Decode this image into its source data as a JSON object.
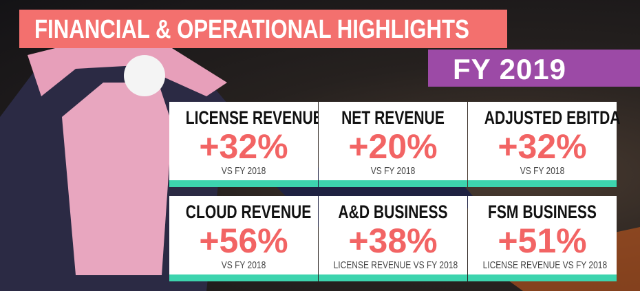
{
  "header": {
    "title": "FINANCIAL & OPERATIONAL HIGHLIGHTS",
    "subtitle": "FY 2019"
  },
  "cards": [
    {
      "title": "LICENSE REVENUE",
      "value": "+32%",
      "note": "VS FY 2018"
    },
    {
      "title": "NET REVENUE",
      "value": "+20%",
      "note": "VS FY 2018"
    },
    {
      "title": "ADJUSTED EBITDA",
      "value": "+32%",
      "note": "VS FY 2018"
    },
    {
      "title": "CLOUD REVENUE",
      "value": "+56%",
      "note": "VS FY 2018"
    },
    {
      "title": "A&D BUSINESS",
      "value": "+38%",
      "note": "LICENSE REVENUE VS FY 2018"
    },
    {
      "title": "FSM BUSINESS",
      "value": "+51%",
      "note": "LICENSE REVENUE VS FY 2018"
    }
  ]
}
